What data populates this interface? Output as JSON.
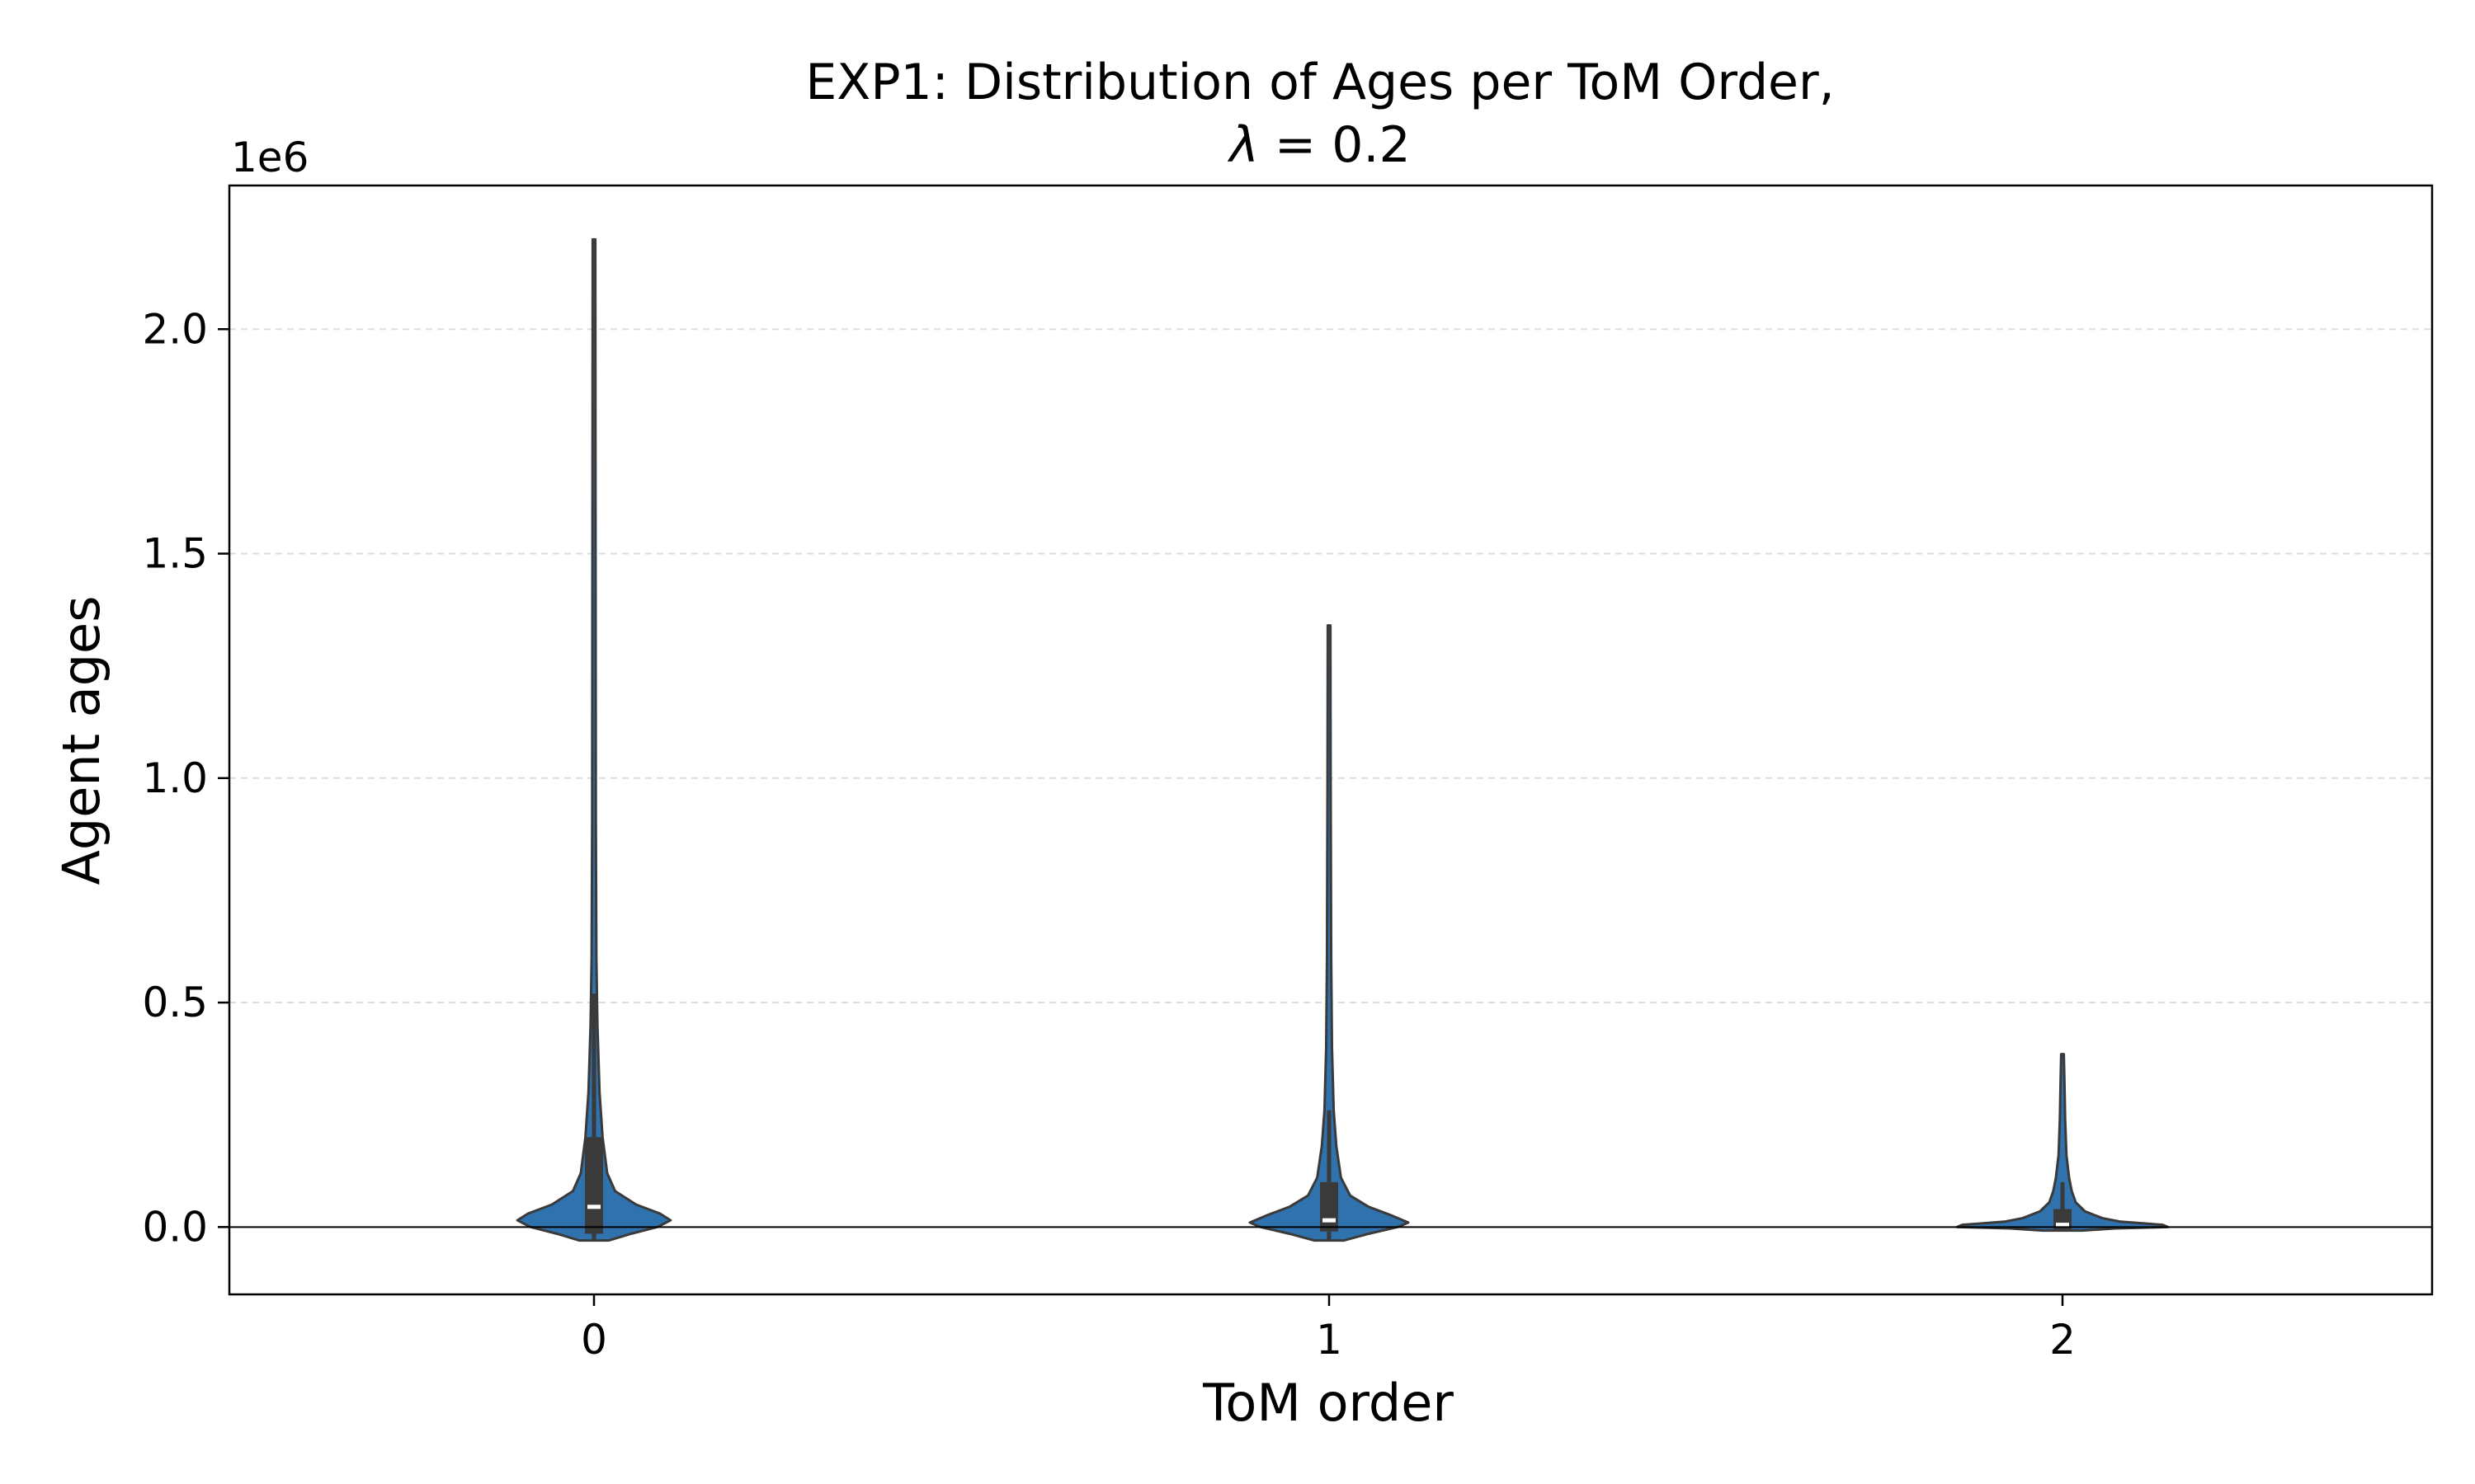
{
  "chart_data": {
    "type": "violin",
    "title_line1": "EXP1: Distribution of Ages per ToM Order,",
    "title_line2_symbol": "λ",
    "title_line2_rest": " = 0.2",
    "xlabel": "ToM order",
    "ylabel": "Agent ages",
    "y_offset_label": "1e6",
    "y_scale": 1000000,
    "categories": [
      "0",
      "1",
      "2"
    ],
    "ylim": [
      -150000,
      2320000
    ],
    "y_ticks": [
      0,
      500000,
      1000000,
      1500000,
      2000000
    ],
    "y_tick_labels": [
      "0.0",
      "0.5",
      "1.0",
      "1.5",
      "2.0"
    ],
    "grid": "horizontal-dashed",
    "zero_line": true,
    "colors": {
      "violin_fill": "#2f72ad",
      "violin_edge": "#3a3a3a",
      "box": "#3a3a3a",
      "median": "#ffffff",
      "grid": "#dddddd"
    },
    "series": [
      {
        "category": "0",
        "min": -30000,
        "max": 2200000,
        "q1": -15000,
        "median": 45000,
        "q3": 200000,
        "whisker_high": 520000,
        "density": [
          {
            "y": -30000,
            "w": 0.11
          },
          {
            "y": -15000,
            "w": 0.28
          },
          {
            "y": 0,
            "w": 0.48
          },
          {
            "y": 15000,
            "w": 0.58
          },
          {
            "y": 30000,
            "w": 0.5
          },
          {
            "y": 50000,
            "w": 0.32
          },
          {
            "y": 80000,
            "w": 0.16
          },
          {
            "y": 120000,
            "w": 0.1
          },
          {
            "y": 200000,
            "w": 0.065
          },
          {
            "y": 300000,
            "w": 0.042
          },
          {
            "y": 450000,
            "w": 0.026
          },
          {
            "y": 600000,
            "w": 0.018
          },
          {
            "y": 900000,
            "w": 0.014
          },
          {
            "y": 1500000,
            "w": 0.012
          },
          {
            "y": 2200000,
            "w": 0.01
          }
        ]
      },
      {
        "category": "1",
        "min": -30000,
        "max": 1340000,
        "q1": -10000,
        "median": 15000,
        "q3": 100000,
        "whisker_high": 260000,
        "density": [
          {
            "y": -30000,
            "w": 0.11
          },
          {
            "y": -15000,
            "w": 0.3
          },
          {
            "y": 0,
            "w": 0.52
          },
          {
            "y": 10000,
            "w": 0.6
          },
          {
            "y": 25000,
            "w": 0.48
          },
          {
            "y": 45000,
            "w": 0.3
          },
          {
            "y": 70000,
            "w": 0.16
          },
          {
            "y": 110000,
            "w": 0.09
          },
          {
            "y": 180000,
            "w": 0.055
          },
          {
            "y": 260000,
            "w": 0.035
          },
          {
            "y": 400000,
            "w": 0.022
          },
          {
            "y": 600000,
            "w": 0.016
          },
          {
            "y": 1000000,
            "w": 0.012
          },
          {
            "y": 1340000,
            "w": 0.01
          }
        ]
      },
      {
        "category": "2",
        "min": -8000,
        "max": 385000,
        "q1": -5000,
        "median": 5000,
        "q3": 40000,
        "whisker_high": 100000,
        "density": [
          {
            "y": -8000,
            "w": 0.15
          },
          {
            "y": -3000,
            "w": 0.4
          },
          {
            "y": 0,
            "w": 0.8
          },
          {
            "y": 5000,
            "w": 0.76
          },
          {
            "y": 12000,
            "w": 0.44
          },
          {
            "y": 20000,
            "w": 0.3
          },
          {
            "y": 35000,
            "w": 0.17
          },
          {
            "y": 55000,
            "w": 0.1
          },
          {
            "y": 80000,
            "w": 0.07
          },
          {
            "y": 110000,
            "w": 0.05
          },
          {
            "y": 160000,
            "w": 0.03
          },
          {
            "y": 240000,
            "w": 0.02
          },
          {
            "y": 320000,
            "w": 0.015
          },
          {
            "y": 385000,
            "w": 0.01
          }
        ]
      }
    ]
  }
}
